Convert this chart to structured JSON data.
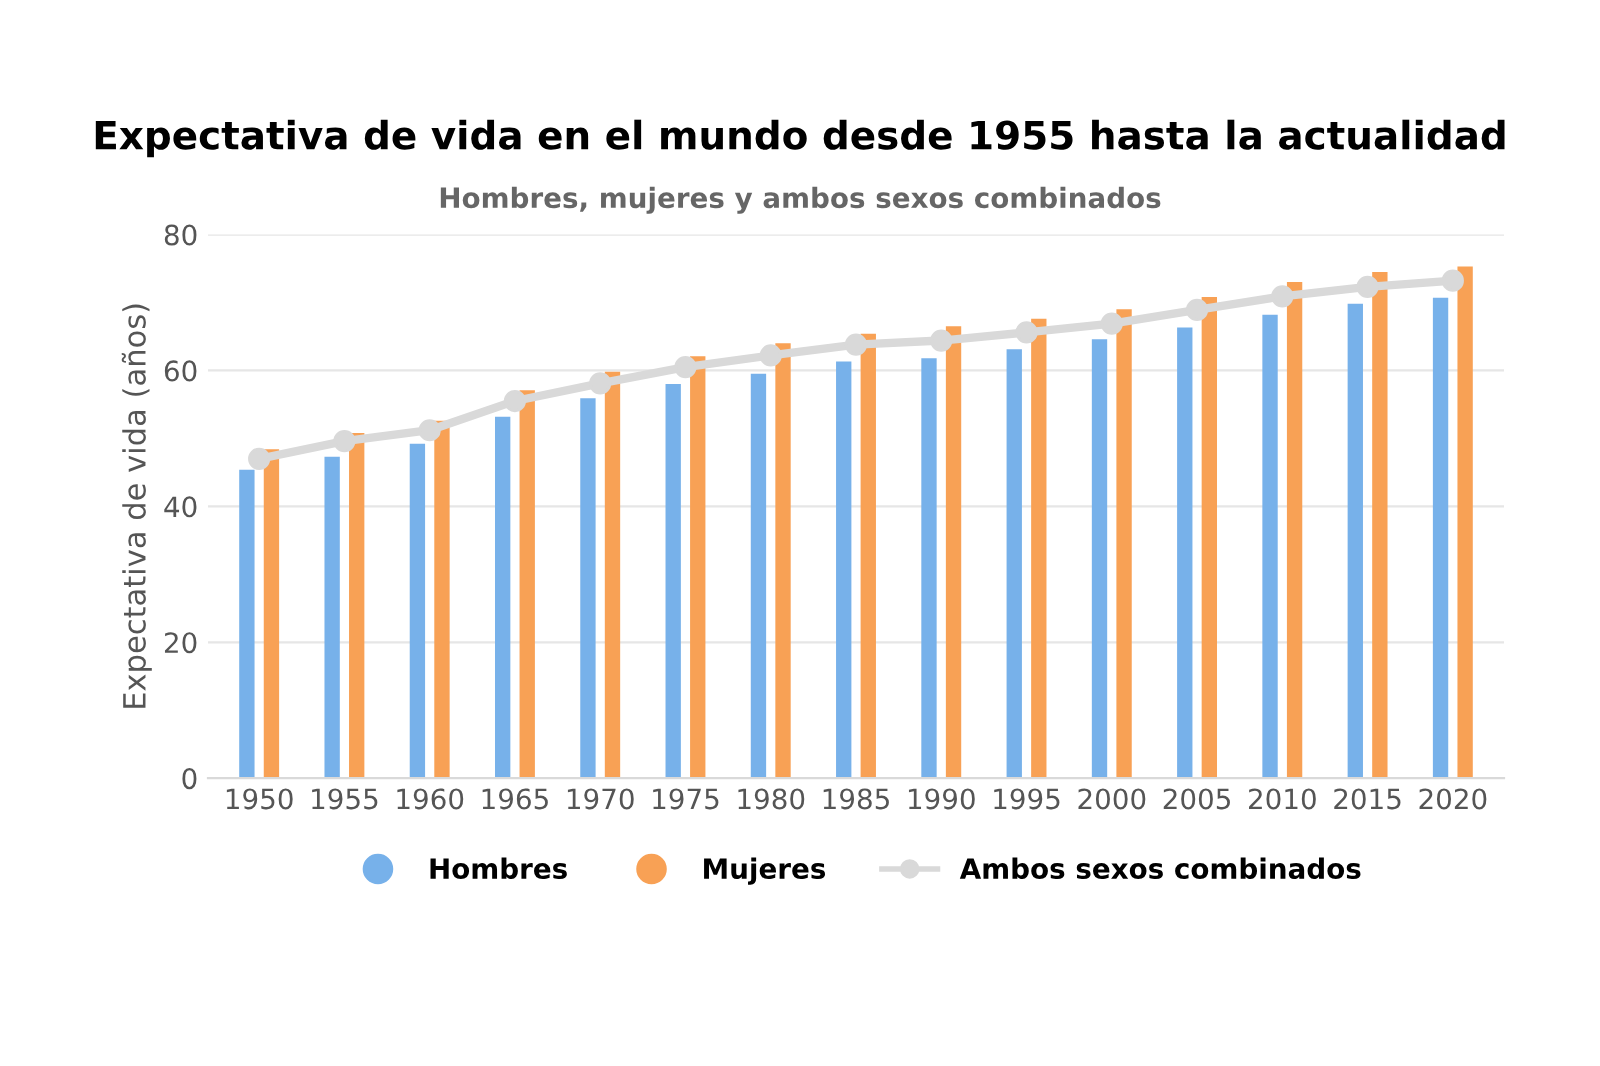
{
  "chart_data": {
    "type": "bar",
    "title": "Expectativa de vida en el mundo desde 1955 hasta la actualidad",
    "subtitle": "Hombres, mujeres y ambos sexos combinados",
    "ylabel": "Expectativa de vida (años)",
    "categories": [
      "1950",
      "1955",
      "1960",
      "1965",
      "1970",
      "1975",
      "1980",
      "1985",
      "1990",
      "1995",
      "2000",
      "2005",
      "2010",
      "2015",
      "2020"
    ],
    "series": [
      {
        "name": "Hombres",
        "color": "#77b1ea",
        "values": [
          45.4,
          47.3,
          49.2,
          53.2,
          55.9,
          58.0,
          59.5,
          61.3,
          61.8,
          63.1,
          64.6,
          66.3,
          68.2,
          69.8,
          70.7
        ]
      },
      {
        "name": "Mujeres",
        "color": "#f8a155",
        "values": [
          48.4,
          50.8,
          52.6,
          57.1,
          59.8,
          62.1,
          64.0,
          65.4,
          66.5,
          67.6,
          69.0,
          70.8,
          73.0,
          74.5,
          75.3
        ]
      },
      {
        "name": "Ambos sexos combinados",
        "type": "line",
        "color": "#d9d9d9",
        "values": [
          47.0,
          49.6,
          51.2,
          55.5,
          58.1,
          60.5,
          62.2,
          63.8,
          64.4,
          65.6,
          66.9,
          68.9,
          70.9,
          72.3,
          73.2
        ]
      }
    ],
    "ylim": [
      0,
      80
    ],
    "yticks": [
      0,
      20,
      40,
      60,
      80
    ],
    "grid": "y",
    "legend": "bottom",
    "marker": "circle",
    "line_style": "solid"
  }
}
